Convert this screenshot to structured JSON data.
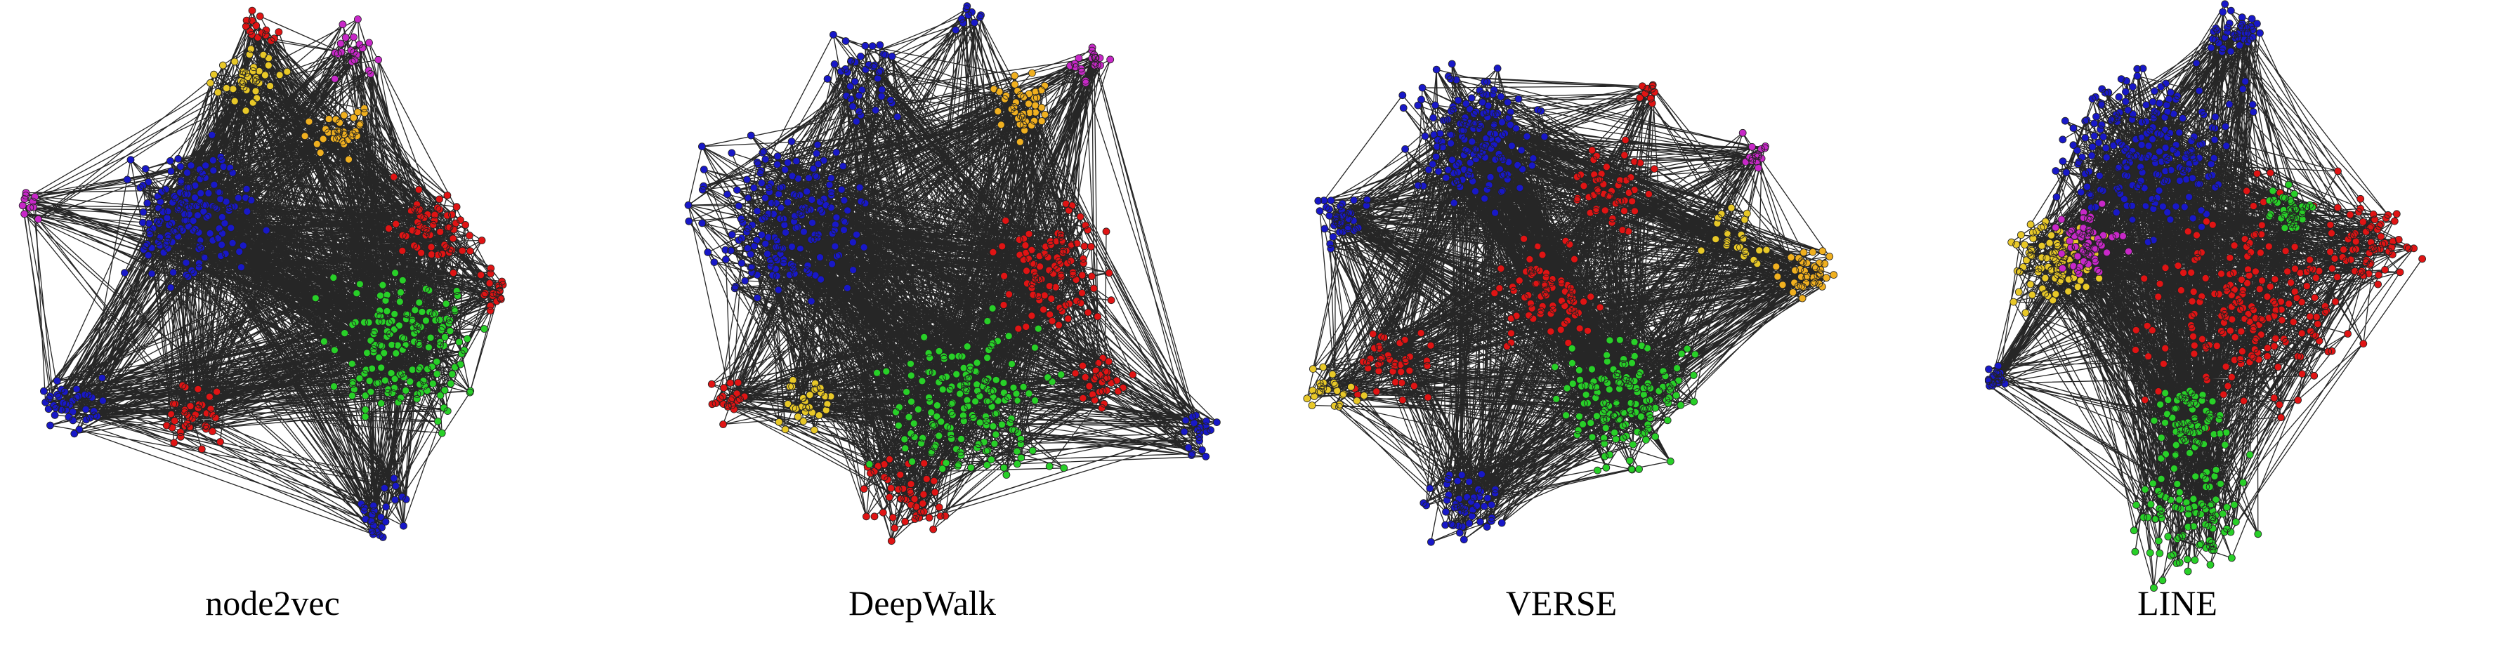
{
  "panels": [
    {
      "caption": "node2vec"
    },
    {
      "caption": "DeepWalk"
    },
    {
      "caption": "VERSE"
    },
    {
      "caption": "LINE"
    }
  ]
}
